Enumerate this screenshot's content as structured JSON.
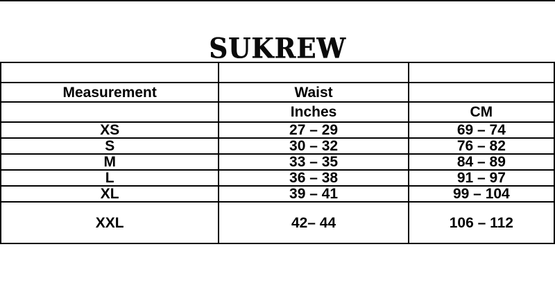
{
  "page": {
    "background_color": "#ffffff",
    "rule_color": "#000000",
    "text_color": "#000000"
  },
  "logo": {
    "text": "SUKREW"
  },
  "table": {
    "border_color": "#000000",
    "rows": [
      {
        "cells": [
          "",
          "",
          ""
        ]
      },
      {
        "cells": [
          "Measurement",
          "Waist",
          ""
        ]
      },
      {
        "cells": [
          "",
          "Inches",
          "CM"
        ]
      },
      {
        "cells": [
          "XS",
          "27 – 29",
          "69 – 74"
        ]
      },
      {
        "cells": [
          "S",
          "30 – 32",
          "76 – 82"
        ]
      },
      {
        "cells": [
          "M",
          "33 – 35",
          "84 – 89"
        ]
      },
      {
        "cells": [
          "L",
          "36 – 38",
          "91 – 97"
        ]
      },
      {
        "cells": [
          "XL",
          "39 – 41",
          "99 – 104"
        ]
      },
      {
        "cells": [
          "XXL",
          "42– 44",
          "106 – 112"
        ]
      }
    ]
  },
  "chart_data": {
    "type": "table",
    "title": "SUKREW",
    "subject": "Waist size chart",
    "columns": [
      "Measurement",
      "Waist Inches",
      "Waist CM"
    ],
    "rows": [
      [
        "XS",
        "27 – 29",
        "69 – 74"
      ],
      [
        "S",
        "30 – 32",
        "76 – 82"
      ],
      [
        "M",
        "33 – 35",
        "84 – 89"
      ],
      [
        "L",
        "36 – 38",
        "91 – 97"
      ],
      [
        "XL",
        "39 – 41",
        "99 – 104"
      ],
      [
        "XXL",
        "42– 44",
        "106 – 112"
      ]
    ],
    "sizes": [
      {
        "size": "XS",
        "waist_inches": [
          27,
          29
        ],
        "waist_cm": [
          69,
          74
        ]
      },
      {
        "size": "S",
        "waist_inches": [
          30,
          32
        ],
        "waist_cm": [
          76,
          82
        ]
      },
      {
        "size": "M",
        "waist_inches": [
          33,
          35
        ],
        "waist_cm": [
          84,
          89
        ]
      },
      {
        "size": "L",
        "waist_inches": [
          36,
          38
        ],
        "waist_cm": [
          91,
          97
        ]
      },
      {
        "size": "XL",
        "waist_inches": [
          39,
          41
        ],
        "waist_cm": [
          99,
          104
        ]
      },
      {
        "size": "XXL",
        "waist_inches": [
          42,
          44
        ],
        "waist_cm": [
          106,
          112
        ]
      }
    ]
  }
}
